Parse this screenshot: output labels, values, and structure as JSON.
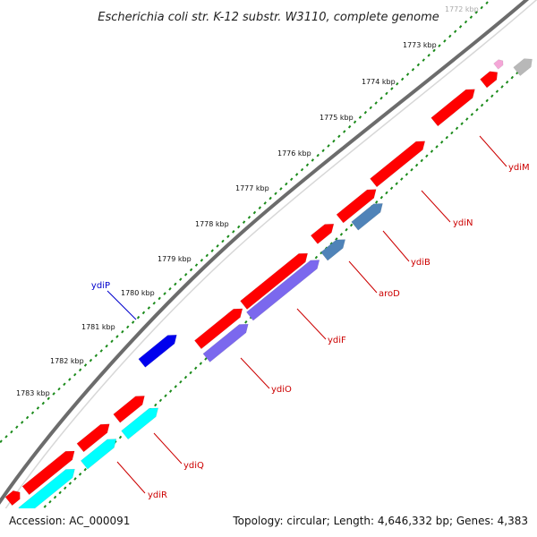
{
  "header": {
    "title": "Escherichia coli str. K-12 substr. W3110, complete genome"
  },
  "footer": {
    "accession": "Accession: AC_000091",
    "summary": "Topology: circular; Length: 4,646,332 bp; Genes: 4,383"
  },
  "colors": {
    "forward_gene": "#ff0000",
    "cyan_gene": "#00ffff",
    "blue_gene": "#0000ee",
    "steelblue_gene": "#4f83b8",
    "slateblue_gene": "#7b68ee",
    "grey_gene": "#b8b8b8",
    "tick_green": "#1a8a1a",
    "backbone": "#808080",
    "label_red": "#cc0000",
    "label_blue": "#0000cc"
  },
  "ticks": [
    {
      "label": "1772 kbp",
      "faint": true
    },
    {
      "label": "1773 kbp"
    },
    {
      "label": "1774 kbp"
    },
    {
      "label": "1775 kbp"
    },
    {
      "label": "1776 kbp"
    },
    {
      "label": "1777 kbp"
    },
    {
      "label": "1778 kbp"
    },
    {
      "label": "1779 kbp"
    },
    {
      "label": "1780 kbp"
    },
    {
      "label": "1781 kbp"
    },
    {
      "label": "1782 kbp"
    },
    {
      "label": "1783 kbp"
    }
  ],
  "gene_labels": [
    {
      "name": "ydiM",
      "color": "#cc0000"
    },
    {
      "name": "ydiN",
      "color": "#cc0000"
    },
    {
      "name": "ydiB",
      "color": "#cc0000"
    },
    {
      "name": "aroD",
      "color": "#cc0000"
    },
    {
      "name": "ydiF",
      "color": "#cc0000"
    },
    {
      "name": "ydiO",
      "color": "#cc0000"
    },
    {
      "name": "ydiP",
      "color": "#0000cc"
    },
    {
      "name": "ydiQ",
      "color": "#cc0000"
    },
    {
      "name": "ydiR",
      "color": "#cc0000"
    }
  ]
}
